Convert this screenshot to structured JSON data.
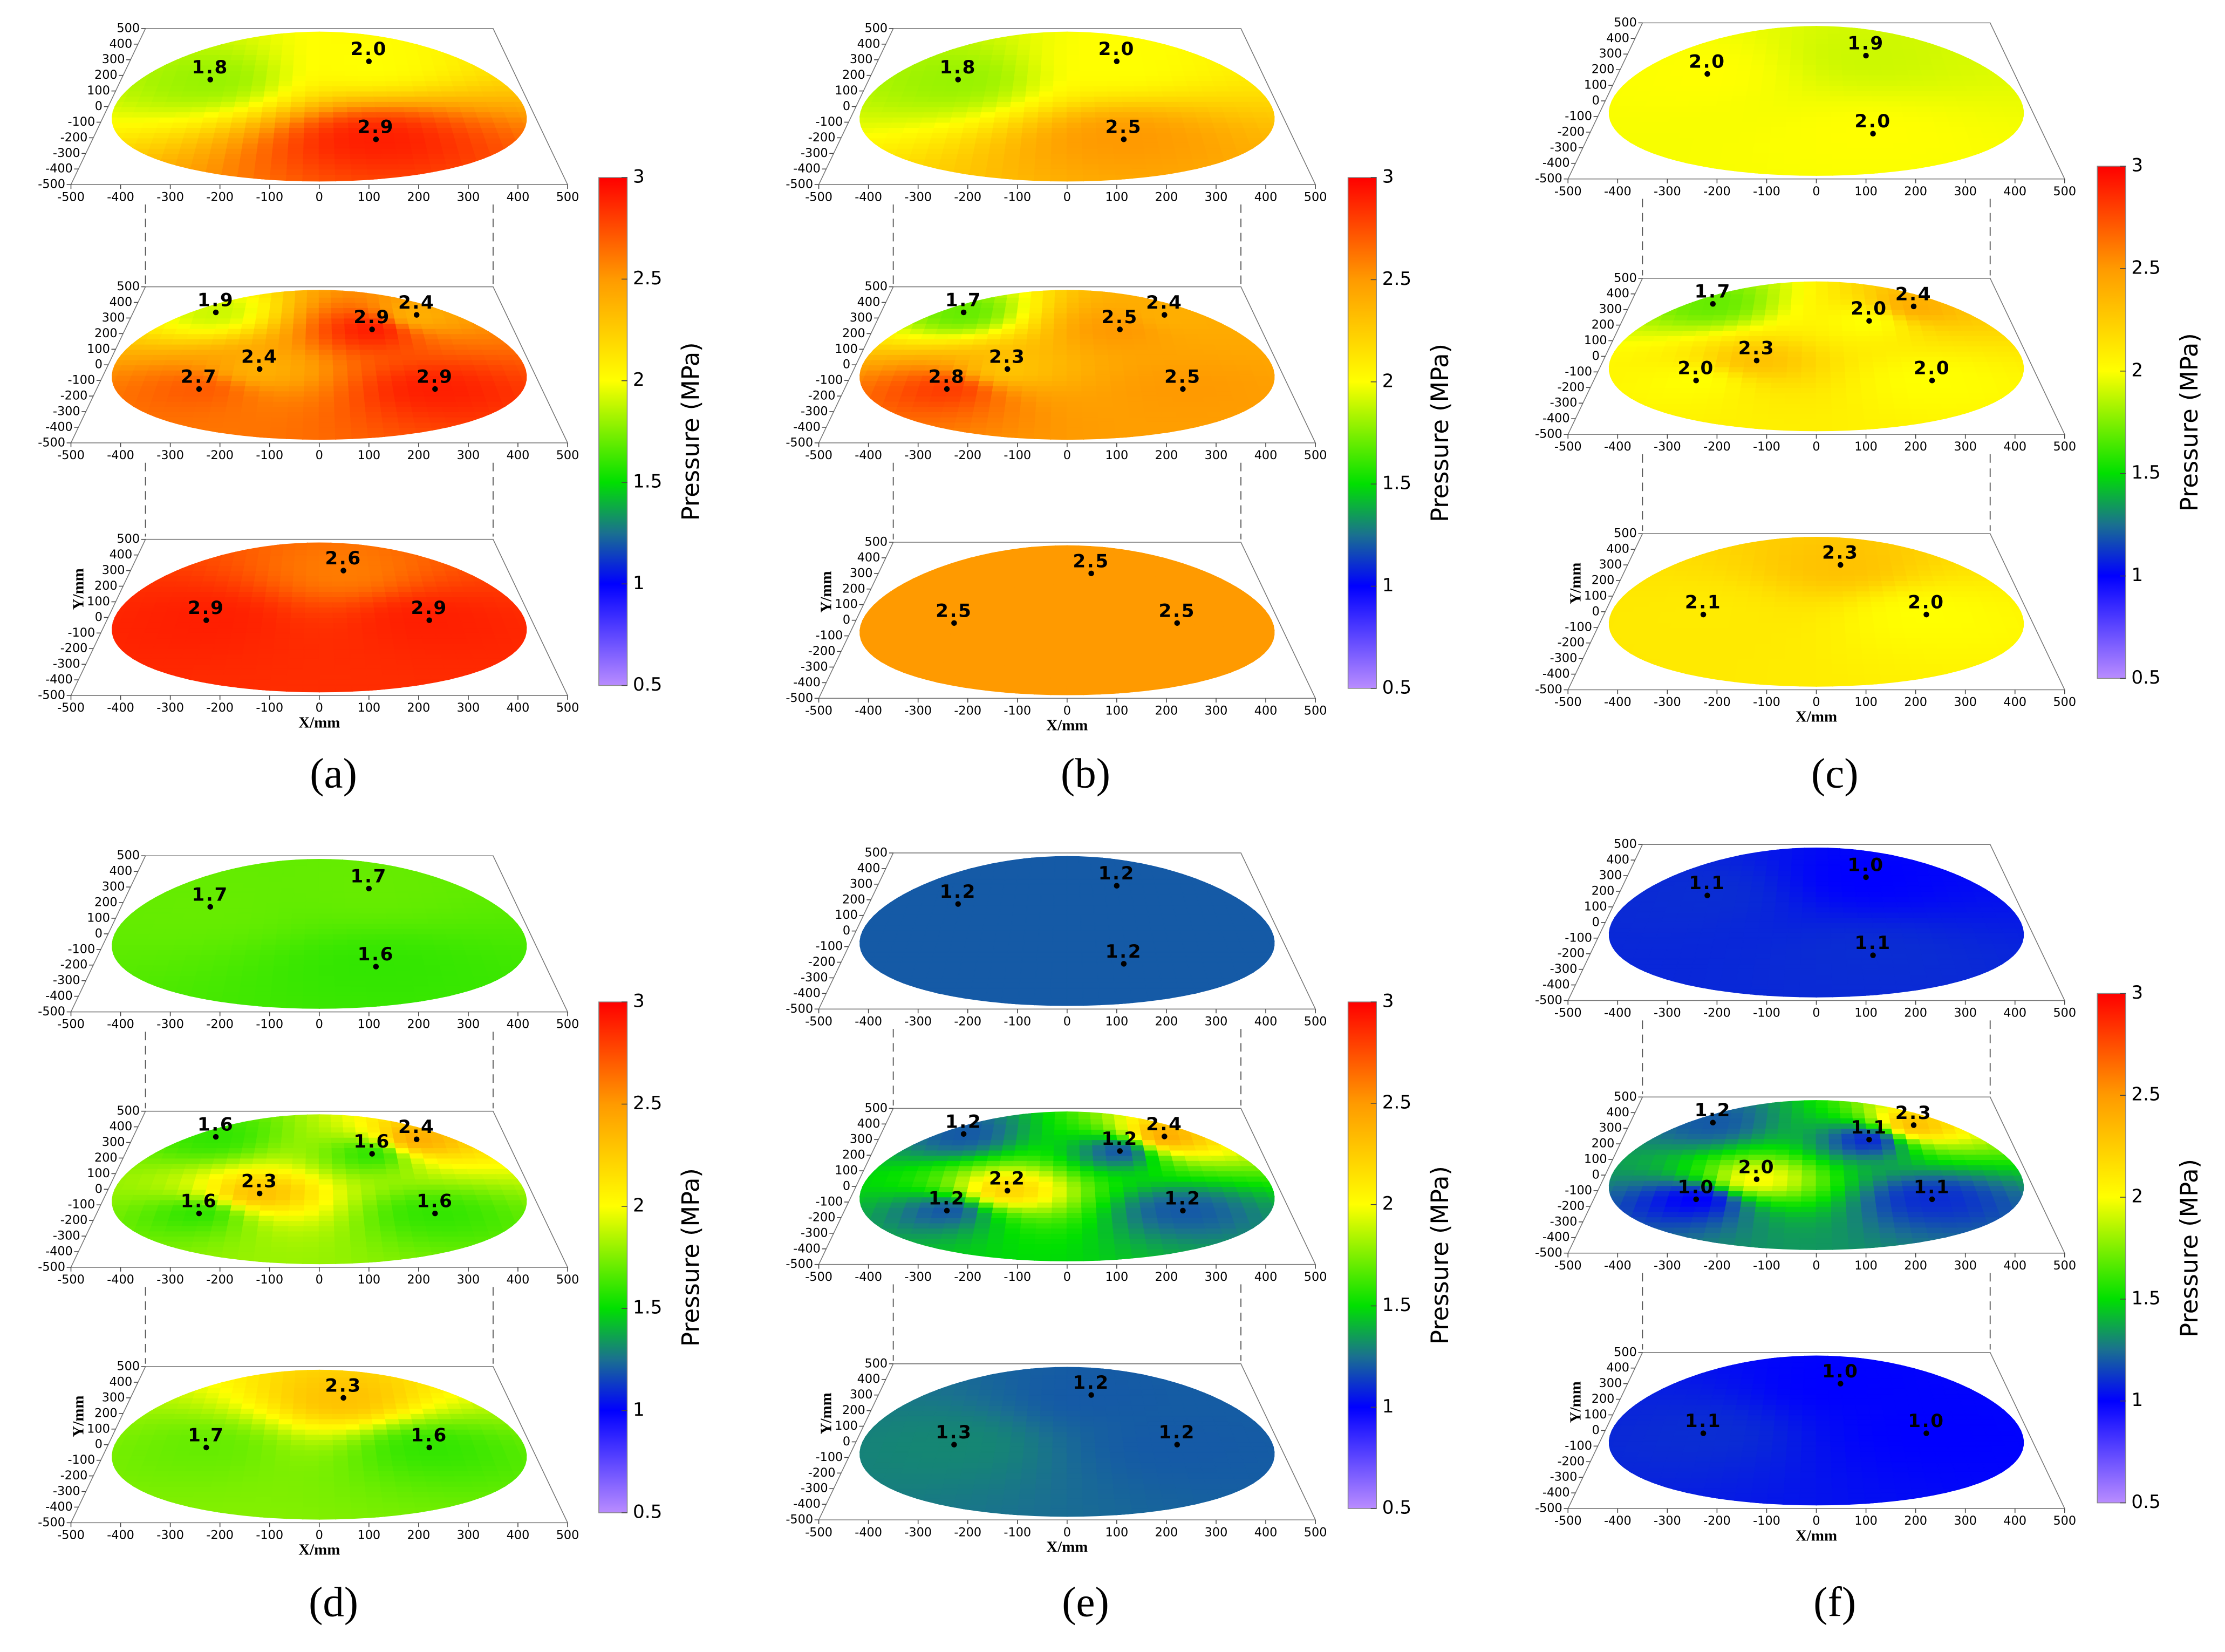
{
  "chart_data": [
    {
      "type": "layered-pressure-map",
      "panel_label": "(a)",
      "x_label": "X/mm",
      "y_label": "Y/mm",
      "xlim": [
        -500,
        500
      ],
      "xticks": [
        -500,
        -400,
        -300,
        -200,
        -100,
        0,
        100,
        200,
        300,
        400,
        500
      ],
      "ylim": [
        -500,
        500
      ],
      "yticks": [
        -500,
        -400,
        -300,
        -200,
        -100,
        0,
        100,
        200,
        300,
        400,
        500
      ],
      "colorbar": {
        "label": "Pressure (MPa)",
        "clim": [
          0.5,
          3
        ],
        "ticks": [
          0.5,
          1,
          1.5,
          2,
          2.5,
          3
        ],
        "colormap": [
          {
            "value": 0.5,
            "color": "#b98cff"
          },
          {
            "value": 1,
            "color": "#0000ff"
          },
          {
            "value": 1.25,
            "color": "#1a7090"
          },
          {
            "value": 1.5,
            "color": "#00e000"
          },
          {
            "value": 2,
            "color": "#ffff00"
          },
          {
            "value": 2.5,
            "color": "#ff9a00"
          },
          {
            "value": 3,
            "color": "#ff0000"
          }
        ]
      },
      "layers": [
        {
          "x": [
            -275,
            131,
            125
          ],
          "y": [
            173,
            290,
            -210
          ],
          "values": [
            1.8,
            2,
            2.9
          ],
          "value_labels": [
            "1.8",
            "2.0",
            "2.9"
          ]
        },
        {
          "x": [
            -278,
            260,
            136,
            -140,
            -270,
            260
          ],
          "y": [
            336,
            320,
            227,
            -27,
            -155,
            -155
          ],
          "values": [
            1.9,
            2.4,
            2.9,
            2.4,
            2.7,
            2.9
          ],
          "value_labels": [
            "1.9",
            "2.4",
            "2.9",
            "2.4",
            "2.7",
            "2.9"
          ]
        },
        {
          "x": [
            64,
            -266,
            259
          ],
          "y": [
            300,
            -18,
            -18
          ],
          "values": [
            2.6,
            2.9,
            2.9
          ],
          "value_labels": [
            "2.6",
            "2.9",
            "2.9"
          ]
        }
      ]
    },
    {
      "type": "layered-pressure-map",
      "panel_label": "(b)",
      "x_label": "X/mm",
      "y_label": "Y/mm",
      "xlim": [
        -500,
        500
      ],
      "xticks": [
        -500,
        -400,
        -300,
        -200,
        -100,
        0,
        100,
        200,
        300,
        400,
        500
      ],
      "ylim": [
        -500,
        500
      ],
      "yticks": [
        -500,
        -400,
        -300,
        -200,
        -100,
        0,
        100,
        200,
        300,
        400,
        500
      ],
      "colorbar": {
        "label": "Pressure (MPa)",
        "clim": [
          0.5,
          3
        ],
        "ticks": [
          0.5,
          1,
          1.5,
          2,
          2.5,
          3
        ],
        "colormap": [
          {
            "value": 0.5,
            "color": "#b98cff"
          },
          {
            "value": 1,
            "color": "#0000ff"
          },
          {
            "value": 1.25,
            "color": "#1a7090"
          },
          {
            "value": 1.5,
            "color": "#00e000"
          },
          {
            "value": 2,
            "color": "#ffff00"
          },
          {
            "value": 2.5,
            "color": "#ff9a00"
          },
          {
            "value": 3,
            "color": "#ff0000"
          }
        ]
      },
      "layers": [
        {
          "x": [
            -275,
            131,
            125
          ],
          "y": [
            173,
            290,
            -210
          ],
          "values": [
            1.8,
            2,
            2.5
          ],
          "value_labels": [
            "1.8",
            "2.0",
            "2.5"
          ]
        },
        {
          "x": [
            -278,
            260,
            136,
            -140,
            -270,
            260
          ],
          "y": [
            336,
            320,
            227,
            -27,
            -155,
            -155
          ],
          "values": [
            1.7,
            2.4,
            2.5,
            2.3,
            2.8,
            2.5
          ],
          "value_labels": [
            "1.7",
            "2.4",
            "2.5",
            "2.3",
            "2.8",
            "2.5"
          ]
        },
        {
          "x": [
            64,
            -266,
            259
          ],
          "y": [
            300,
            -18,
            -18
          ],
          "values": [
            2.5,
            2.5,
            2.5
          ],
          "value_labels": [
            "2.5",
            "2.5",
            "2.5"
          ]
        }
      ]
    },
    {
      "type": "layered-pressure-map",
      "panel_label": "(c)",
      "x_label": "X/mm",
      "y_label": "Y/mm",
      "xlim": [
        -500,
        500
      ],
      "xticks": [
        -500,
        -400,
        -300,
        -200,
        -100,
        0,
        100,
        200,
        300,
        400,
        500
      ],
      "ylim": [
        -500,
        500
      ],
      "yticks": [
        -500,
        -400,
        -300,
        -200,
        -100,
        0,
        100,
        200,
        300,
        400,
        500
      ],
      "colorbar": {
        "label": "Pressure (MPa)",
        "clim": [
          0.5,
          3
        ],
        "ticks": [
          0.5,
          1,
          1.5,
          2,
          2.5,
          3
        ],
        "colormap": [
          {
            "value": 0.5,
            "color": "#b98cff"
          },
          {
            "value": 1,
            "color": "#0000ff"
          },
          {
            "value": 1.25,
            "color": "#1a7090"
          },
          {
            "value": 1.5,
            "color": "#00e000"
          },
          {
            "value": 2,
            "color": "#ffff00"
          },
          {
            "value": 2.5,
            "color": "#ff9a00"
          },
          {
            "value": 3,
            "color": "#ff0000"
          }
        ]
      },
      "layers": [
        {
          "x": [
            -275,
            131,
            125
          ],
          "y": [
            173,
            290,
            -210
          ],
          "values": [
            2,
            1.9,
            2
          ],
          "value_labels": [
            "2.0",
            "1.9",
            "2.0"
          ]
        },
        {
          "x": [
            -278,
            260,
            136,
            -140,
            -270,
            260
          ],
          "y": [
            336,
            320,
            227,
            -27,
            -155,
            -155
          ],
          "values": [
            1.7,
            2.4,
            2,
            2.3,
            2,
            2
          ],
          "value_labels": [
            "1.7",
            "2.4",
            "2.0",
            "2.3",
            "2.0",
            "2.0"
          ]
        },
        {
          "x": [
            64,
            -266,
            259
          ],
          "y": [
            300,
            -18,
            -18
          ],
          "values": [
            2.3,
            2.1,
            2
          ],
          "value_labels": [
            "2.3",
            "2.1",
            "2.0"
          ]
        }
      ]
    },
    {
      "type": "layered-pressure-map",
      "panel_label": "(d)",
      "x_label": "X/mm",
      "y_label": "Y/mm",
      "xlim": [
        -500,
        500
      ],
      "xticks": [
        -500,
        -400,
        -300,
        -200,
        -100,
        0,
        100,
        200,
        300,
        400,
        500
      ],
      "ylim": [
        -500,
        500
      ],
      "yticks": [
        -500,
        -400,
        -300,
        -200,
        -100,
        0,
        100,
        200,
        300,
        400,
        500
      ],
      "colorbar": {
        "label": "Pressure (MPa)",
        "clim": [
          0.5,
          3
        ],
        "ticks": [
          0.5,
          1,
          1.5,
          2,
          2.5,
          3
        ],
        "colormap": [
          {
            "value": 0.5,
            "color": "#b98cff"
          },
          {
            "value": 1,
            "color": "#0000ff"
          },
          {
            "value": 1.25,
            "color": "#1a7090"
          },
          {
            "value": 1.5,
            "color": "#00e000"
          },
          {
            "value": 2,
            "color": "#ffff00"
          },
          {
            "value": 2.5,
            "color": "#ff9a00"
          },
          {
            "value": 3,
            "color": "#ff0000"
          }
        ]
      },
      "layers": [
        {
          "x": [
            -275,
            131,
            125
          ],
          "y": [
            173,
            290,
            -210
          ],
          "values": [
            1.7,
            1.7,
            1.6
          ],
          "value_labels": [
            "1.7",
            "1.7",
            "1.6"
          ]
        },
        {
          "x": [
            -278,
            260,
            136,
            -140,
            -270,
            260
          ],
          "y": [
            336,
            320,
            227,
            -27,
            -155,
            -155
          ],
          "values": [
            1.6,
            2.4,
            1.6,
            2.3,
            1.6,
            1.6
          ],
          "value_labels": [
            "1.6",
            "2.4",
            "1.6",
            "2.3",
            "1.6",
            "1.6"
          ]
        },
        {
          "x": [
            64,
            -266,
            259
          ],
          "y": [
            300,
            -18,
            -18
          ],
          "values": [
            2.3,
            1.7,
            1.6
          ],
          "value_labels": [
            "2.3",
            "1.7",
            "1.6"
          ]
        }
      ]
    },
    {
      "type": "layered-pressure-map",
      "panel_label": "(e)",
      "x_label": "X/mm",
      "y_label": "Y/mm",
      "xlim": [
        -500,
        500
      ],
      "xticks": [
        -500,
        -400,
        -300,
        -200,
        -100,
        0,
        100,
        200,
        300,
        400,
        500
      ],
      "ylim": [
        -500,
        500
      ],
      "yticks": [
        -500,
        -400,
        -300,
        -200,
        -100,
        0,
        100,
        200,
        300,
        400,
        500
      ],
      "colorbar": {
        "label": "Pressure (MPa)",
        "clim": [
          0.5,
          3
        ],
        "ticks": [
          0.5,
          1,
          1.5,
          2,
          2.5,
          3
        ],
        "colormap": [
          {
            "value": 0.5,
            "color": "#b98cff"
          },
          {
            "value": 1,
            "color": "#0000ff"
          },
          {
            "value": 1.25,
            "color": "#1a7090"
          },
          {
            "value": 1.5,
            "color": "#00e000"
          },
          {
            "value": 2,
            "color": "#ffff00"
          },
          {
            "value": 2.5,
            "color": "#ff9a00"
          },
          {
            "value": 3,
            "color": "#ff0000"
          }
        ]
      },
      "layers": [
        {
          "x": [
            -275,
            131,
            125
          ],
          "y": [
            173,
            290,
            -210
          ],
          "values": [
            1.2,
            1.2,
            1.2
          ],
          "value_labels": [
            "1.2",
            "1.2",
            "1.2"
          ]
        },
        {
          "x": [
            -278,
            260,
            136,
            -140,
            -270,
            260
          ],
          "y": [
            336,
            320,
            227,
            -27,
            -155,
            -155
          ],
          "values": [
            1.2,
            2.4,
            1.2,
            2.2,
            1.2,
            1.2
          ],
          "value_labels": [
            "1.2",
            "2.4",
            "1.2",
            "2.2",
            "1.2",
            "1.2"
          ]
        },
        {
          "x": [
            64,
            -266,
            259
          ],
          "y": [
            300,
            -18,
            -18
          ],
          "values": [
            1.2,
            1.3,
            1.2
          ],
          "value_labels": [
            "1.2",
            "1.3",
            "1.2"
          ]
        }
      ]
    },
    {
      "type": "layered-pressure-map",
      "panel_label": "(f)",
      "x_label": "X/mm",
      "y_label": "Y/mm",
      "xlim": [
        -500,
        500
      ],
      "xticks": [
        -500,
        -400,
        -300,
        -200,
        -100,
        0,
        100,
        200,
        300,
        400,
        500
      ],
      "ylim": [
        -500,
        500
      ],
      "yticks": [
        -500,
        -400,
        -300,
        -200,
        -100,
        0,
        100,
        200,
        300,
        400,
        500
      ],
      "colorbar": {
        "label": "Pressure (MPa)",
        "clim": [
          0.5,
          3
        ],
        "ticks": [
          0.5,
          1,
          1.5,
          2,
          2.5,
          3
        ],
        "colormap": [
          {
            "value": 0.5,
            "color": "#b98cff"
          },
          {
            "value": 1,
            "color": "#0000ff"
          },
          {
            "value": 1.25,
            "color": "#1a7090"
          },
          {
            "value": 1.5,
            "color": "#00e000"
          },
          {
            "value": 2,
            "color": "#ffff00"
          },
          {
            "value": 2.5,
            "color": "#ff9a00"
          },
          {
            "value": 3,
            "color": "#ff0000"
          }
        ]
      },
      "layers": [
        {
          "x": [
            -275,
            131,
            125
          ],
          "y": [
            173,
            290,
            -210
          ],
          "values": [
            1.1,
            1,
            1.1
          ],
          "value_labels": [
            "1.1",
            "1.0",
            "1.1"
          ]
        },
        {
          "x": [
            -278,
            260,
            136,
            -140,
            -270,
            260
          ],
          "y": [
            336,
            320,
            227,
            -27,
            -155,
            -155
          ],
          "values": [
            1.2,
            2.3,
            1.1,
            2,
            1,
            1.1
          ],
          "value_labels": [
            "1.2",
            "2.3",
            "1.1",
            "2.0",
            "1.0",
            "1.1"
          ]
        },
        {
          "x": [
            64,
            -266,
            259
          ],
          "y": [
            300,
            -18,
            -18
          ],
          "values": [
            1,
            1.1,
            1
          ],
          "value_labels": [
            "1.0",
            "1.1",
            "1.0"
          ]
        }
      ]
    }
  ]
}
